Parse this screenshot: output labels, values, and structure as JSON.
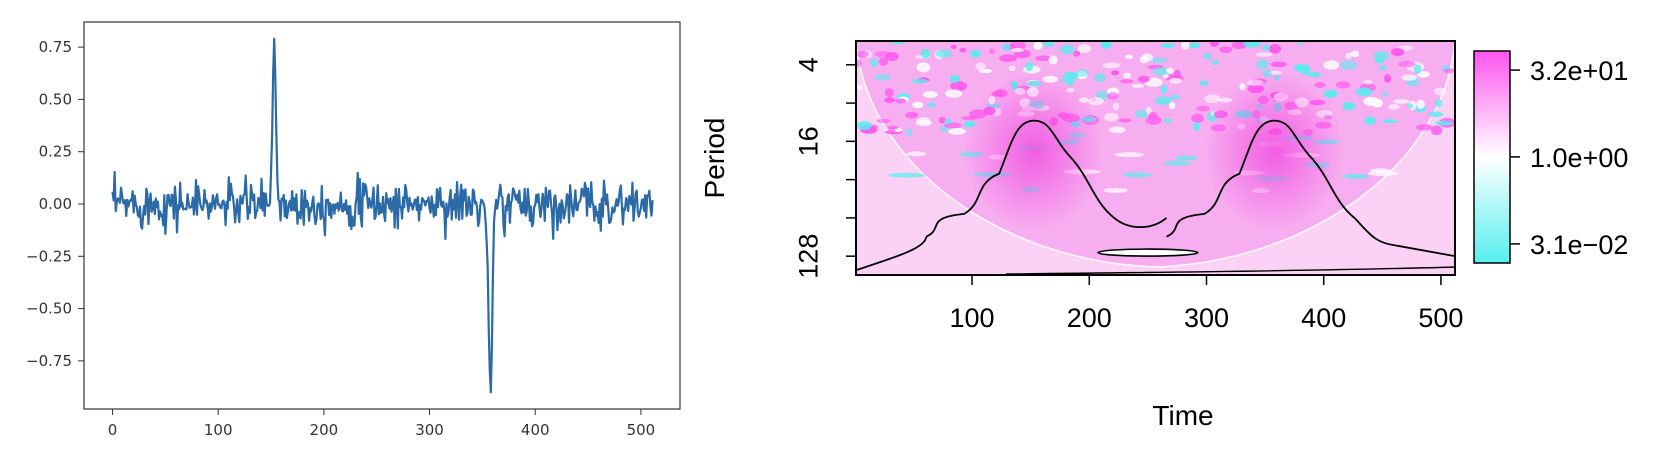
{
  "chart_data": [
    {
      "type": "line",
      "title": "",
      "xlabel": "",
      "ylabel": "",
      "xlim": [
        -27,
        537
      ],
      "ylim": [
        -0.98,
        0.87
      ],
      "x_ticks": [
        "0",
        "100",
        "200",
        "300",
        "400",
        "500"
      ],
      "x_tick_values": [
        0,
        100,
        200,
        300,
        400,
        500
      ],
      "y_ticks": [
        "0.75",
        "0.50",
        "0.25",
        "0.00",
        "−0.25",
        "−0.50",
        "−0.75"
      ],
      "y_tick_values": [
        0.75,
        0.5,
        0.25,
        0.0,
        -0.25,
        -0.5,
        -0.75
      ],
      "grid": false,
      "line_color": "#2b6aa6",
      "x_range": [
        0,
        511
      ],
      "noise_amplitude": 0.06,
      "events": [
        {
          "kind": "positive-spike",
          "x": 153,
          "y": 0.79
        },
        {
          "kind": "negative-spike",
          "x": 358,
          "y": -0.9
        }
      ]
    },
    {
      "type": "heatmap",
      "title": "",
      "xlabel": "Time",
      "ylabel": "Period",
      "xlim": [
        1,
        512
      ],
      "period_scale": "log2",
      "period_range": [
        2.6,
        180
      ],
      "x_ticks": [
        "100",
        "200",
        "300",
        "400",
        "500"
      ],
      "x_tick_values": [
        100,
        200,
        300,
        400,
        500
      ],
      "y_ticks": [
        "4",
        "16",
        "128"
      ],
      "y_tick_values": [
        4,
        16,
        128
      ],
      "colorbar": {
        "ticks": [
          "3.2e+01",
          "1.0e+00",
          "3.1e−02"
        ],
        "tick_values": [
          32,
          1.0,
          0.031
        ],
        "colors": [
          "#ff55ee",
          "#ffffff",
          "#55eeee"
        ]
      },
      "significance_regions": [
        {
          "center_time": 153,
          "peak_period": 11
        },
        {
          "center_time": 358,
          "peak_period": 11
        }
      ],
      "power_peaks": [
        {
          "time": 153,
          "period": 16
        },
        {
          "time": 358,
          "period": 16
        }
      ]
    }
  ]
}
